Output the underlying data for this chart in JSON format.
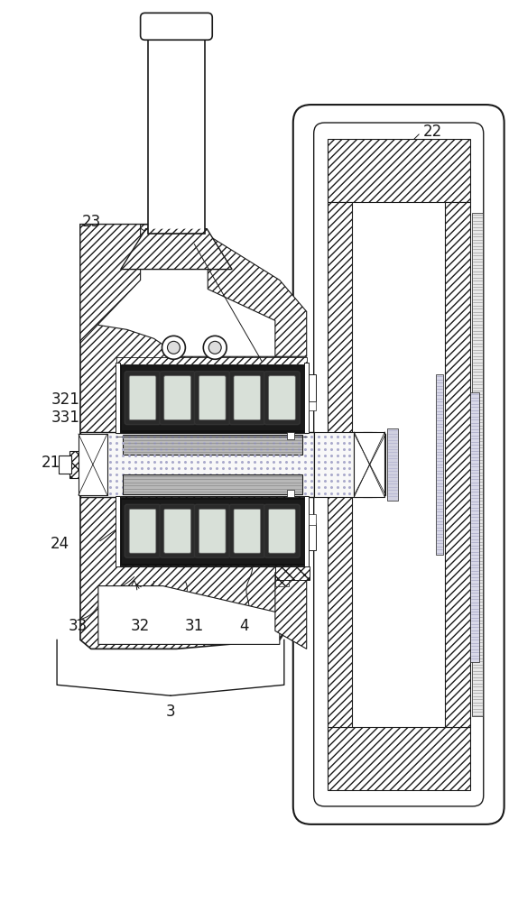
{
  "bg_color": "#ffffff",
  "lc": "#1a1a1a",
  "lw": 1.2,
  "lw_thick": 2.0,
  "lw_thin": 0.6,
  "gray_hatch": "#d0d0d0",
  "gray_med": "#b0b0b0",
  "gray_dark": "#707070",
  "gray_light": "#e8e8e8",
  "green_tint": "#d8e8d8",
  "pink_tint": "#f0e0e0"
}
